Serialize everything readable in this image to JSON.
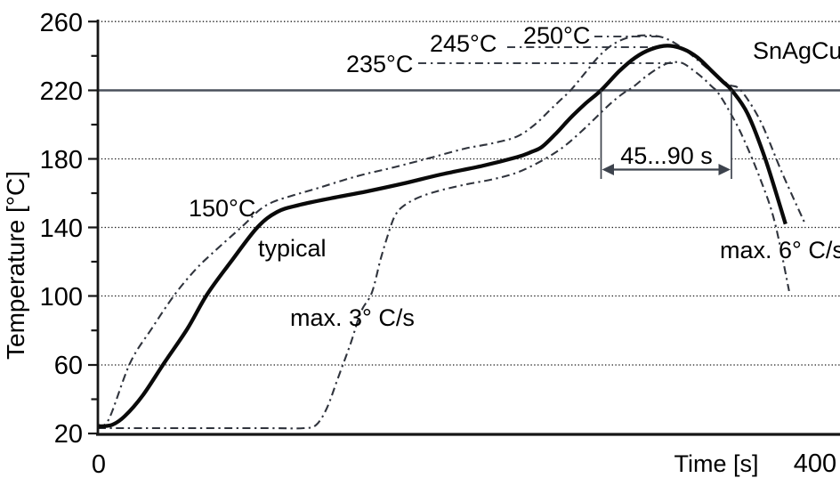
{
  "axes": {
    "y": {
      "title": "Temperature [°C]",
      "tick_labels": [
        "260",
        "220",
        "180",
        "140",
        "100",
        "60",
        "20"
      ],
      "range": [
        20,
        260
      ]
    },
    "x": {
      "title": "Time [s]",
      "tick_labels": [
        "0",
        "400"
      ],
      "range": [
        0,
        400
      ]
    }
  },
  "annotations": {
    "t150": "150°C",
    "typical": "typical",
    "ramp": "max. 3° C/s",
    "t235": "235°C",
    "t245": "245°C",
    "t250": "250°C",
    "alloy": "SnAgCu",
    "window": "45...90 s",
    "cool": "max. 6° C/s"
  },
  "colors": {
    "typical_curve": "#0a0a0a",
    "bound_curves": "#30343d",
    "liquidus_line": "#4a505c",
    "text": "#000000",
    "background": "#ffffff"
  },
  "chart_data": {
    "type": "line",
    "title": "",
    "xlabel": "Time [s]",
    "ylabel": "Temperature [°C]",
    "xlim": [
      0,
      400
    ],
    "ylim": [
      20,
      260
    ],
    "grid": "dotted horizontal lines at 60, 100, 140, 180, 260 °C",
    "reference_lines": [
      {
        "axis": "y",
        "value": 220,
        "style": "solid",
        "meaning": "SnAgCu liquidus"
      }
    ],
    "process_window": {
      "label": "45...90 s",
      "from_s": 281,
      "to_s": 354,
      "above_c": 220
    },
    "series": [
      {
        "id": "lower",
        "name": "lower bound (max. 3° C/s ramp, 235°C peak)",
        "style": "dash-dot",
        "peak_c": 235,
        "points": [
          [
            0,
            23
          ],
          [
            50,
            23
          ],
          [
            95,
            23
          ],
          [
            115,
            23
          ],
          [
            122,
            25
          ],
          [
            128,
            35
          ],
          [
            134,
            52
          ],
          [
            141,
            72
          ],
          [
            147,
            91
          ],
          [
            153,
            102
          ],
          [
            158,
            122
          ],
          [
            163,
            139
          ],
          [
            166,
            147
          ],
          [
            170,
            152
          ],
          [
            178,
            157
          ],
          [
            189,
            161
          ],
          [
            205,
            165
          ],
          [
            220,
            168
          ],
          [
            234,
            172
          ],
          [
            248,
            179
          ],
          [
            260,
            187
          ],
          [
            270,
            196
          ],
          [
            278,
            204
          ],
          [
            286,
            212
          ],
          [
            293,
            218
          ],
          [
            299,
            222
          ],
          [
            306,
            228
          ],
          [
            313,
            233
          ],
          [
            319,
            236
          ],
          [
            326,
            236
          ],
          [
            332,
            232
          ],
          [
            338,
            227
          ],
          [
            343,
            222
          ],
          [
            346,
            219
          ],
          [
            352,
            209
          ],
          [
            360,
            193
          ],
          [
            370,
            168
          ],
          [
            378,
            143
          ],
          [
            386,
            103
          ]
        ]
      },
      {
        "id": "upper",
        "name": "upper bound (250°C peak, max. 6° C/s cooling)",
        "style": "dash-dot",
        "peak_c": 250,
        "points": [
          [
            0,
            25
          ],
          [
            6,
            28
          ],
          [
            18,
            61
          ],
          [
            30,
            81
          ],
          [
            43,
            101
          ],
          [
            55,
            116
          ],
          [
            65,
            126
          ],
          [
            81,
            141
          ],
          [
            90,
            150
          ],
          [
            98,
            155
          ],
          [
            110,
            159
          ],
          [
            123,
            163
          ],
          [
            145,
            170
          ],
          [
            165,
            175
          ],
          [
            187,
            181
          ],
          [
            205,
            186
          ],
          [
            220,
            189
          ],
          [
            234,
            193
          ],
          [
            244,
            200
          ],
          [
            252,
            208
          ],
          [
            258,
            214
          ],
          [
            264,
            220
          ],
          [
            272,
            230
          ],
          [
            280,
            240
          ],
          [
            288,
            247
          ],
          [
            297,
            251
          ],
          [
            306,
            252
          ],
          [
            315,
            251
          ],
          [
            323,
            247
          ],
          [
            331,
            241
          ],
          [
            339,
            234
          ],
          [
            347,
            227
          ],
          [
            353,
            223
          ],
          [
            359,
            220
          ],
          [
            370,
            202
          ],
          [
            382,
            172
          ],
          [
            395,
            142
          ]
        ]
      },
      {
        "id": "typical",
        "name": "typical",
        "style": "solid",
        "peak_c": 245,
        "points": [
          [
            0,
            24
          ],
          [
            8,
            25
          ],
          [
            15,
            30
          ],
          [
            25,
            42
          ],
          [
            37,
            61
          ],
          [
            50,
            81
          ],
          [
            61,
            101
          ],
          [
            75,
            121
          ],
          [
            89,
            140
          ],
          [
            100,
            149
          ],
          [
            112,
            153
          ],
          [
            130,
            157
          ],
          [
            150,
            161
          ],
          [
            172,
            166
          ],
          [
            192,
            171
          ],
          [
            215,
            176
          ],
          [
            234,
            181
          ],
          [
            242,
            184
          ],
          [
            248,
            187
          ],
          [
            256,
            195
          ],
          [
            264,
            204
          ],
          [
            272,
            212
          ],
          [
            281,
            220
          ],
          [
            291,
            231
          ],
          [
            300,
            239
          ],
          [
            309,
            244
          ],
          [
            318,
            246
          ],
          [
            327,
            244
          ],
          [
            335,
            239
          ],
          [
            343,
            231
          ],
          [
            349,
            225
          ],
          [
            354,
            220
          ],
          [
            363,
            206
          ],
          [
            373,
            179
          ],
          [
            384,
            142
          ]
        ]
      }
    ]
  }
}
